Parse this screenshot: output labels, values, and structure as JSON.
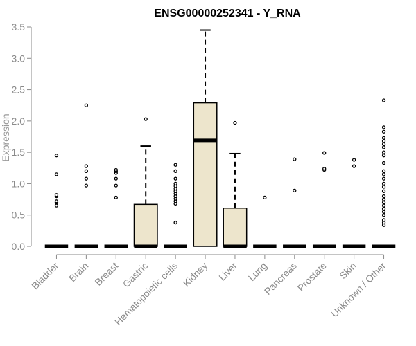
{
  "chart_data": {
    "type": "box",
    "title": "ENSG00000252341 - Y_RNA",
    "xlabel": "",
    "ylabel": "Expression",
    "ylim": [
      0,
      3.5
    ],
    "yticks": [
      "0.0",
      "0.5",
      "1.0",
      "1.5",
      "2.0",
      "2.5",
      "3.0",
      "3.5"
    ],
    "categories": [
      "Bladder",
      "Brain",
      "Breast",
      "Gastric",
      "Hematopoietic cells",
      "Kidney",
      "Liver",
      "Lung",
      "Pancreas",
      "Prostate",
      "Skin",
      "Unknown / Other"
    ],
    "boxes": [
      {
        "q1": 0,
        "median": 0,
        "q3": 0,
        "whisker_low": 0,
        "whisker_high": 0,
        "outliers": [
          0.65,
          0.7,
          0.72,
          0.8,
          0.82,
          1.15,
          1.45
        ]
      },
      {
        "q1": 0,
        "median": 0,
        "q3": 0,
        "whisker_low": 0,
        "whisker_high": 0,
        "outliers": [
          0.97,
          1.08,
          1.2,
          1.28,
          2.25
        ]
      },
      {
        "q1": 0,
        "median": 0,
        "q3": 0,
        "whisker_low": 0,
        "whisker_high": 0,
        "outliers": [
          0.78,
          0.97,
          1.08,
          1.17,
          1.2,
          1.22
        ]
      },
      {
        "q1": 0,
        "median": 0,
        "q3": 0.67,
        "whisker_low": 0,
        "whisker_high": 1.6,
        "outliers": [
          2.03
        ]
      },
      {
        "q1": 0,
        "median": 0,
        "q3": 0,
        "whisker_low": 0,
        "whisker_high": 0,
        "outliers": [
          0.38,
          0.68,
          0.72,
          0.76,
          0.8,
          0.84,
          0.88,
          0.92,
          0.96,
          1.0,
          1.08,
          1.2,
          1.3
        ]
      },
      {
        "q1": 0,
        "median": 1.69,
        "q3": 2.29,
        "whisker_low": 0,
        "whisker_high": 3.45,
        "outliers": []
      },
      {
        "q1": 0,
        "median": 0,
        "q3": 0.61,
        "whisker_low": 0,
        "whisker_high": 1.48,
        "outliers": [
          1.97
        ]
      },
      {
        "q1": 0,
        "median": 0,
        "q3": 0,
        "whisker_low": 0,
        "whisker_high": 0,
        "outliers": [
          0.78
        ]
      },
      {
        "q1": 0,
        "median": 0,
        "q3": 0,
        "whisker_low": 0,
        "whisker_high": 0,
        "outliers": [
          0.89,
          1.39
        ]
      },
      {
        "q1": 0,
        "median": 0,
        "q3": 0,
        "whisker_low": 0,
        "whisker_high": 0,
        "outliers": [
          1.22,
          1.24,
          1.49
        ]
      },
      {
        "q1": 0,
        "median": 0,
        "q3": 0,
        "whisker_low": 0,
        "whisker_high": 0,
        "outliers": [
          1.28,
          1.38
        ]
      },
      {
        "q1": 0,
        "median": 0,
        "q3": 0,
        "whisker_low": 0,
        "whisker_high": 0,
        "outliers": [
          0.34,
          0.38,
          0.42,
          0.5,
          0.55,
          0.6,
          0.65,
          0.7,
          0.75,
          0.8,
          0.88,
          0.95,
          1.0,
          1.08,
          1.15,
          1.2,
          1.33,
          1.45,
          1.5,
          1.58,
          1.63,
          1.68,
          1.73,
          1.83,
          1.9,
          2.33
        ]
      }
    ],
    "colors": {
      "box_fill": "#ede5cc",
      "box_stroke": "#000000",
      "axis": "#8a8a8a",
      "title": "#000000"
    },
    "grid": false,
    "legend": "none"
  }
}
